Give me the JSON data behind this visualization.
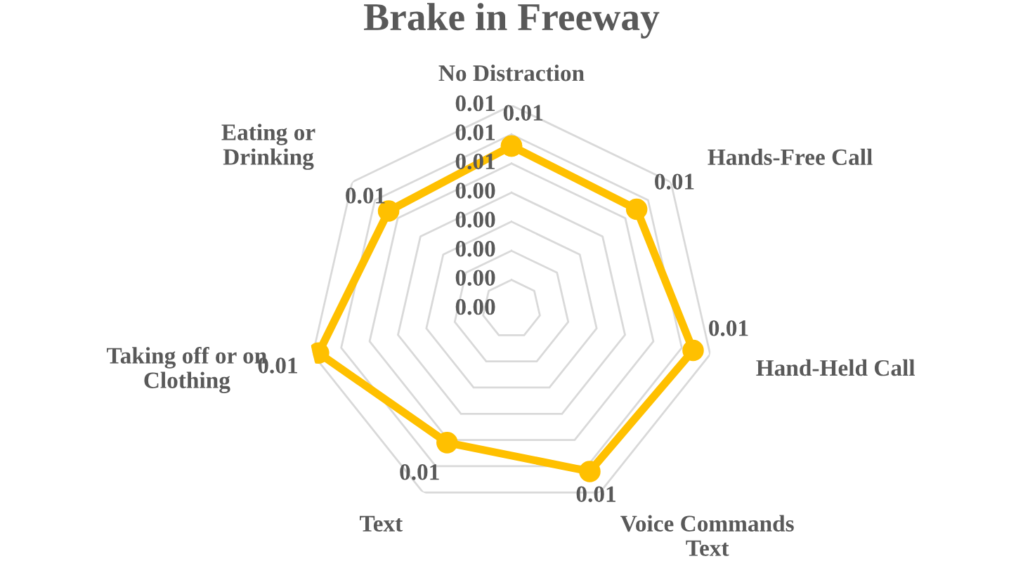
{
  "chart_data": {
    "type": "radar",
    "title": "Brake in Freeway",
    "categories": [
      "No Distraction",
      "Hands-Free Call",
      "Hand-Held Call",
      "Voice Commands\nText",
      "Text",
      "Taking off or on\nClothing",
      "Eating or\nDrinking"
    ],
    "series": [
      {
        "color": "#ffc000",
        "values": [
          0.0056,
          0.0055,
          0.0064,
          0.0062,
          0.0051,
          0.0068,
          0.0054
        ],
        "value_labels": [
          "0.01",
          "0.01",
          "0.01",
          "0.01",
          "0.01",
          "0.01",
          "0.01"
        ]
      }
    ],
    "ylim": [
      0,
      0.007
    ],
    "yticks": [
      {
        "value": 0,
        "label": "0.00"
      },
      {
        "value": 0.001,
        "label": "0.00"
      },
      {
        "value": 0.002,
        "label": "0.00"
      },
      {
        "value": 0.003,
        "label": "0.00"
      },
      {
        "value": 0.004,
        "label": "0.00"
      },
      {
        "value": 0.005,
        "label": "0.01"
      },
      {
        "value": 0.006,
        "label": "0.01"
      },
      {
        "value": 0.007,
        "label": "0.01"
      }
    ],
    "grid": true,
    "marker": "circle",
    "line_style": "solid"
  }
}
